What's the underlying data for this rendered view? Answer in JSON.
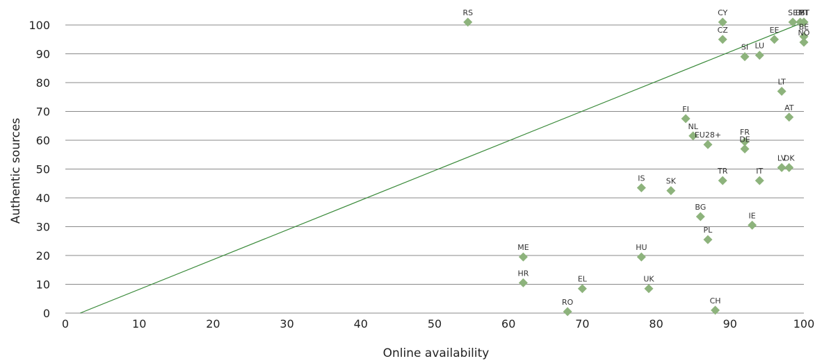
{
  "chart_data": {
    "type": "scatter",
    "xlabel": "Online availability",
    "ylabel": "Authentic sources",
    "xlim": [
      0,
      100
    ],
    "ylim": [
      0,
      100
    ],
    "x_ticks": [
      0,
      10,
      20,
      30,
      40,
      50,
      60,
      70,
      80,
      90,
      100
    ],
    "y_ticks": [
      0,
      10,
      20,
      30,
      40,
      50,
      60,
      70,
      80,
      90,
      100
    ],
    "grid": "horizontal",
    "colors": {
      "point": "#8db37c",
      "line": "#3a8a3a",
      "grid": "#888888"
    },
    "trendline": {
      "x": [
        2,
        100
      ],
      "y": [
        0,
        101
      ]
    },
    "points": [
      {
        "label": "RS",
        "x": 54.5,
        "y": 101
      },
      {
        "label": "CY",
        "x": 89,
        "y": 101
      },
      {
        "label": "SE",
        "x": 98.5,
        "y": 101
      },
      {
        "label": "ES",
        "x": 99.5,
        "y": 101
      },
      {
        "label": "MT",
        "x": 100,
        "y": 101
      },
      {
        "label": "PT",
        "x": 100,
        "y": 101
      },
      {
        "label": "BE",
        "x": 100,
        "y": 96
      },
      {
        "label": "NO",
        "x": 100,
        "y": 94
      },
      {
        "label": "CZ",
        "x": 89,
        "y": 95
      },
      {
        "label": "EE",
        "x": 96,
        "y": 95
      },
      {
        "label": "SI",
        "x": 92,
        "y": 89
      },
      {
        "label": "LU",
        "x": 94,
        "y": 89.5
      },
      {
        "label": "LT",
        "x": 97,
        "y": 77
      },
      {
        "label": "AT",
        "x": 98,
        "y": 68
      },
      {
        "label": "FI",
        "x": 84,
        "y": 67.5
      },
      {
        "label": "NL",
        "x": 85,
        "y": 61.5
      },
      {
        "label": "EU28+",
        "x": 87,
        "y": 58.5
      },
      {
        "label": "FR",
        "x": 92,
        "y": 59.5
      },
      {
        "label": "DE",
        "x": 92,
        "y": 57
      },
      {
        "label": "LV",
        "x": 97,
        "y": 50.5
      },
      {
        "label": "DK",
        "x": 98,
        "y": 50.5
      },
      {
        "label": "IS",
        "x": 78,
        "y": 43.5
      },
      {
        "label": "SK",
        "x": 82,
        "y": 42.5
      },
      {
        "label": "TR",
        "x": 89,
        "y": 46
      },
      {
        "label": "IT",
        "x": 94,
        "y": 46
      },
      {
        "label": "BG",
        "x": 86,
        "y": 33.5
      },
      {
        "label": "IE",
        "x": 93,
        "y": 30.5
      },
      {
        "label": "PL",
        "x": 87,
        "y": 25.5
      },
      {
        "label": "ME",
        "x": 62,
        "y": 19.5
      },
      {
        "label": "HU",
        "x": 78,
        "y": 19.5
      },
      {
        "label": "HR",
        "x": 62,
        "y": 10.5
      },
      {
        "label": "EL",
        "x": 70,
        "y": 8.5
      },
      {
        "label": "UK",
        "x": 79,
        "y": 8.5
      },
      {
        "label": "RO",
        "x": 68,
        "y": 0.5
      },
      {
        "label": "CH",
        "x": 88,
        "y": 1
      }
    ]
  }
}
